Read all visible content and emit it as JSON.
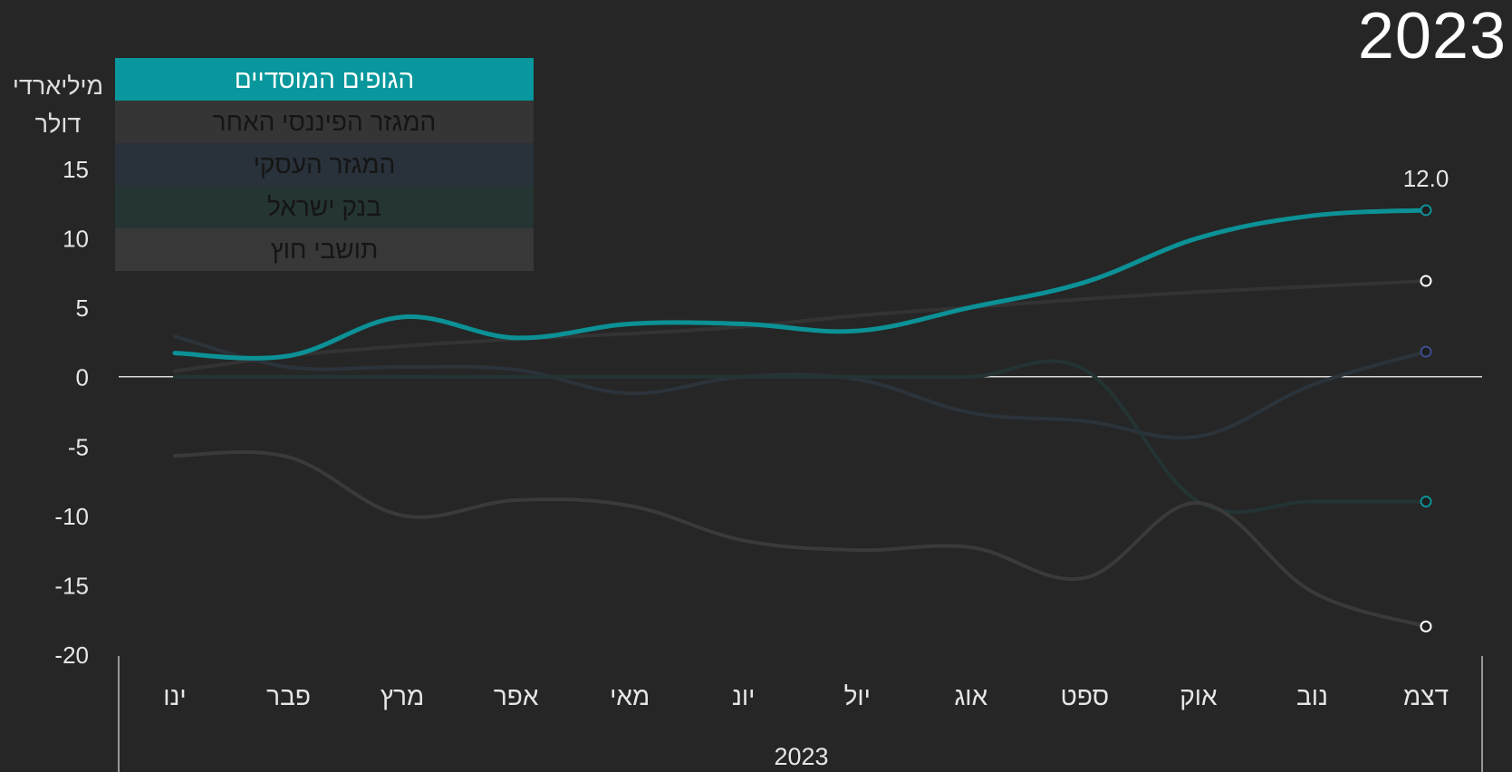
{
  "header": {
    "year_title": "2023"
  },
  "chart_data": {
    "type": "line",
    "title": "2023",
    "ylabel_lines": [
      "מיליארדי",
      "דולר"
    ],
    "xlabel": "2023",
    "categories": [
      "ינו",
      "פבר",
      "מרץ",
      "אפר",
      "מאי",
      "יונ",
      "יול",
      "אוג",
      "ספט",
      "אוק",
      "נוב",
      "דצמ"
    ],
    "ylim": [
      -20,
      15
    ],
    "yticks": [
      15,
      10,
      5,
      0,
      -5,
      -10,
      -15,
      -20
    ],
    "grid": false,
    "legend_position": "top-left",
    "end_label": "12.0",
    "series": [
      {
        "name": "הגופים המוסדיים",
        "color": "#0b9196",
        "end_marker": "#0b9196",
        "active": true,
        "values": [
          1.7,
          1.5,
          4.3,
          2.8,
          3.8,
          3.8,
          3.3,
          5.0,
          6.8,
          10.0,
          11.6,
          12.0
        ]
      },
      {
        "name": "המגזר הפיננסי האחר",
        "color": "#333333",
        "end_marker": "#ffffff",
        "active": false,
        "values": [
          0.4,
          1.5,
          2.2,
          2.7,
          3.1,
          3.6,
          4.4,
          5.0,
          5.6,
          6.1,
          6.5,
          6.9
        ]
      },
      {
        "name": "המגזר העסקי",
        "color": "#2b333b",
        "end_marker": "#3d4e8c",
        "active": false,
        "values": [
          2.9,
          0.7,
          0.7,
          0.5,
          -1.2,
          0.0,
          -0.2,
          -2.6,
          -3.2,
          -4.3,
          -0.6,
          1.8
        ]
      },
      {
        "name": "בנק ישראל",
        "color": "#243333",
        "end_marker": "#0b9196",
        "active": false,
        "values": [
          0.0,
          0.0,
          0.0,
          0.0,
          0.0,
          0.0,
          0.0,
          0.0,
          0.5,
          -9.0,
          -9.0,
          -9.0
        ]
      },
      {
        "name": "תושבי חוץ",
        "color": "#3a3a3a",
        "end_marker": "#ffffff",
        "active": false,
        "values": [
          -5.7,
          -5.8,
          -10.0,
          -8.9,
          -9.3,
          -11.8,
          -12.5,
          -12.3,
          -14.5,
          -9.1,
          -15.5,
          -18.0
        ]
      }
    ]
  },
  "legend_colors": {
    "series_0": "#07979c",
    "series_1": "#353535",
    "series_2": "#29313a",
    "series_3": "#243533",
    "series_4": "#383838"
  }
}
